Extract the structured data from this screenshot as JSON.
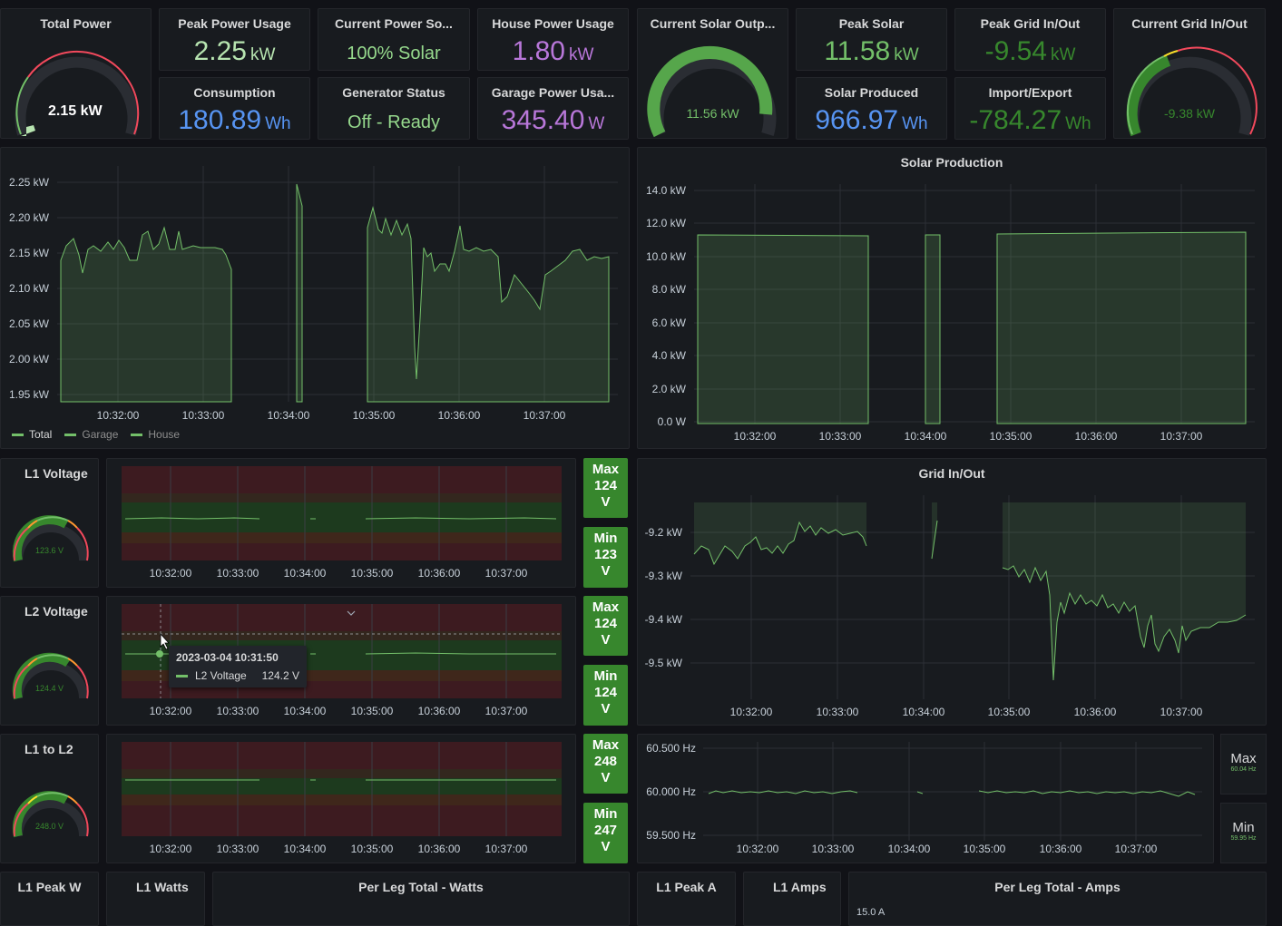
{
  "stats": {
    "total_power": {
      "title": "Total Power",
      "value": "2.15 kW",
      "fraction": 0.55
    },
    "peak_power_usage": {
      "title": "Peak Power Usage",
      "value": "2.25",
      "unit": "kW"
    },
    "current_power_source": {
      "title": "Current Power So...",
      "value": "100% Solar"
    },
    "house_power_usage": {
      "title": "House Power Usage",
      "value": "1.80",
      "unit": "kW"
    },
    "consumption": {
      "title": "Consumption",
      "value": "180.89",
      "unit": "Wh"
    },
    "generator_status": {
      "title": "Generator Status",
      "value": "Off - Ready"
    },
    "garage_power_usage": {
      "title": "Garage Power Usa...",
      "value": "345.40",
      "unit": "W"
    },
    "current_solar_output": {
      "title": "Current Solar Outp...",
      "value": "11.56 kW",
      "fraction": 0.87
    },
    "peak_solar": {
      "title": "Peak Solar",
      "value": "11.58",
      "unit": "kW"
    },
    "solar_produced": {
      "title": "Solar Produced",
      "value": "966.97",
      "unit": "Wh"
    },
    "peak_grid": {
      "title": "Peak Grid In/Out",
      "value": "-9.54",
      "unit": "kW"
    },
    "import_export": {
      "title": "Import/Export",
      "value": "-784.27",
      "unit": "Wh"
    },
    "current_grid": {
      "title": "Current Grid In/Out",
      "value": "-9.38 kW",
      "fraction": 0.48
    }
  },
  "colors": {
    "green": "#73bf69",
    "dark_green": "#37872d",
    "blue": "#5794f2",
    "purple": "#b877d9",
    "light_green": "#96d98d",
    "bg": "#181b1f",
    "red": "#f2495c",
    "orange": "#ff9830",
    "yellow": "#fade2a"
  },
  "power_chart": {
    "legend": [
      "Total",
      "Garage",
      "House"
    ],
    "x_ticks": [
      "10:32:00",
      "10:33:00",
      "10:34:00",
      "10:35:00",
      "10:36:00",
      "10:37:00"
    ],
    "y_ticks": [
      "2.25 kW",
      "2.20 kW",
      "2.15 kW",
      "2.10 kW",
      "2.05 kW",
      "2.00 kW",
      "1.95 kW"
    ]
  },
  "solar_chart": {
    "title": "Solar Production",
    "x_ticks": [
      "10:32:00",
      "10:33:00",
      "10:34:00",
      "10:35:00",
      "10:36:00",
      "10:37:00"
    ],
    "y_ticks": [
      "14.0 kW",
      "12.0 kW",
      "10.0 kW",
      "8.0 kW",
      "6.0 kW",
      "4.0 kW",
      "2.0 kW",
      "0.0 W"
    ]
  },
  "voltage_rows": [
    {
      "title": "L1 Voltage",
      "gauge": "123.6 V",
      "fraction": 0.62,
      "max_label": "Max",
      "max_value": "124",
      "min_label": "Min",
      "min_value": "123",
      "unit": "V"
    },
    {
      "title": "L2 Voltage",
      "gauge": "124.4 V",
      "fraction": 0.64,
      "max_label": "Max",
      "max_value": "124",
      "min_label": "Min",
      "min_value": "124",
      "unit": "V"
    },
    {
      "title": "L1 to L2",
      "gauge": "248.0 V",
      "fraction": 0.62,
      "max_label": "Max",
      "max_value": "248",
      "min_label": "Min",
      "min_value": "247",
      "unit": "V"
    }
  ],
  "voltage_x_ticks": [
    "10:32:00",
    "10:33:00",
    "10:34:00",
    "10:35:00",
    "10:36:00",
    "10:37:00"
  ],
  "tooltip": {
    "time": "2023-03-04 10:31:50",
    "series": "L2 Voltage",
    "value": "124.2 V"
  },
  "grid_chart": {
    "title": "Grid In/Out",
    "x_ticks": [
      "10:32:00",
      "10:33:00",
      "10:34:00",
      "10:35:00",
      "10:36:00",
      "10:37:00"
    ],
    "y_ticks": [
      "-9.2 kW",
      "-9.3 kW",
      "-9.4 kW",
      "-9.5 kW"
    ]
  },
  "freq_chart": {
    "x_ticks": [
      "10:32:00",
      "10:33:00",
      "10:34:00",
      "10:35:00",
      "10:36:00",
      "10:37:00"
    ],
    "y_ticks": [
      "60.500 Hz",
      "60.000 Hz",
      "59.500 Hz"
    ],
    "max_label": "Max",
    "max_value": "60.04 Hz",
    "min_label": "Min",
    "min_value": "59.95 Hz"
  },
  "bottom_row": {
    "l1_peak_w": "L1 Peak W",
    "l1_watts": "L1 Watts",
    "per_leg_watts": "Per Leg Total - Watts",
    "l1_peak_a": "L1 Peak A",
    "l1_amps": "L1 Amps",
    "per_leg_amps": "Per Leg Total - Amps",
    "amps_tick": "15.0 A"
  }
}
